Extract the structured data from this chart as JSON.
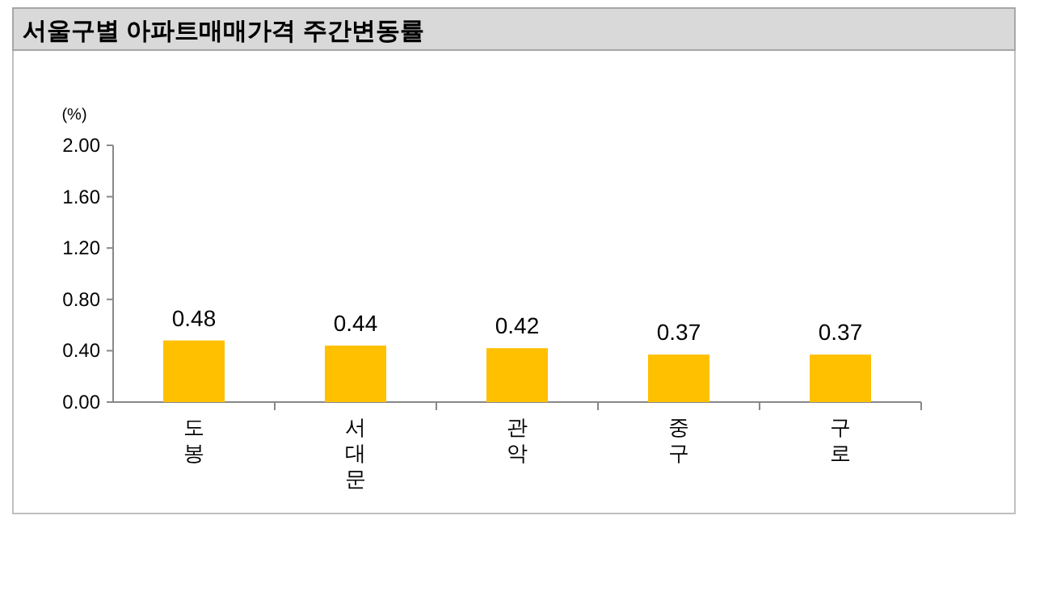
{
  "chart_data": {
    "type": "bar",
    "title": "서울구별 아파트매매가격 주간변동률",
    "ylabel": "(%)",
    "categories": [
      "도봉",
      "서대문",
      "관악",
      "중구",
      "구로"
    ],
    "values": [
      0.48,
      0.44,
      0.42,
      0.37,
      0.37
    ],
    "color": "#ffc000",
    "ylim": [
      0,
      2
    ],
    "yticks": [
      {
        "value": 0,
        "label": "0.00"
      },
      {
        "value": 0.4,
        "label": "0.40"
      },
      {
        "value": 0.8,
        "label": "0.80"
      },
      {
        "value": 1.2,
        "label": "1.20"
      },
      {
        "value": 1.6,
        "label": "1.60"
      },
      {
        "value": 2,
        "label": "2.00"
      }
    ],
    "data_labels": true
  }
}
